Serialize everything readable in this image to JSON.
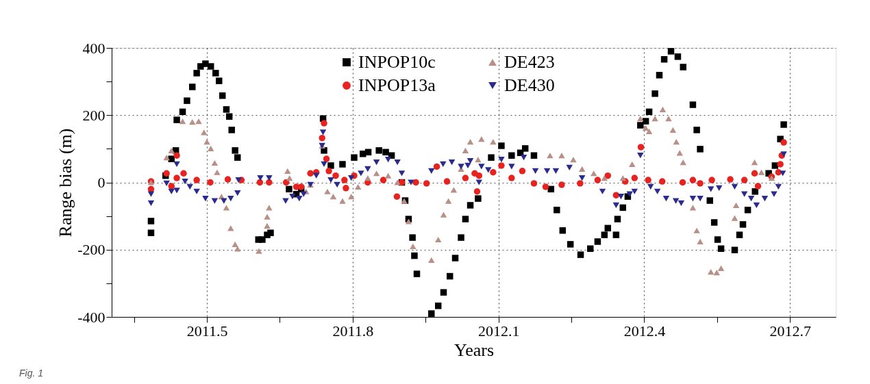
{
  "chart_data": {
    "type": "scatter",
    "xlabel": "Years",
    "ylabel": "Range bias (m)",
    "xlim": [
      2011.304,
      2012.794
    ],
    "ylim": [
      -400,
      400
    ],
    "xticks": [
      {
        "value": 2011.35,
        "label": null
      },
      2011.5,
      {
        "value": 2011.65,
        "label": null
      },
      2011.8,
      {
        "value": 2011.95,
        "label": null
      },
      2012.1,
      {
        "value": 2012.25,
        "label": null
      },
      2012.4,
      {
        "value": 2012.55,
        "label": null
      },
      2012.7
    ],
    "yticks": [
      -400,
      {
        "value": -300,
        "label": null
      },
      -200,
      {
        "value": -100,
        "label": null
      },
      0,
      {
        "value": 100,
        "label": null
      },
      200,
      {
        "value": 300,
        "label": null
      },
      400
    ],
    "grid": true,
    "legend": "top",
    "annotations": [
      "Fig. 1"
    ],
    "series": [
      {
        "name": "INPOP10c",
        "color": "#000000",
        "marker": "square",
        "x": [
          2011.385,
          2011.385,
          2011.415,
          2011.427,
          2011.436,
          2011.438,
          2011.45,
          2011.459,
          2011.47,
          2011.479,
          2011.487,
          2011.497,
          2011.508,
          2011.518,
          2011.525,
          2011.532,
          2011.54,
          2011.546,
          2011.551,
          2011.558,
          2011.563,
          2011.606,
          2011.614,
          2011.624,
          2011.631,
          2011.669,
          2011.684,
          2011.694,
          2011.739,
          2011.741,
          2011.755,
          2011.779,
          2011.803,
          2011.821,
          2011.832,
          2011.854,
          2011.868,
          2011.88,
          2011.901,
          2011.908,
          2011.915,
          2011.923,
          2011.927,
          2011.932,
          2011.962,
          2011.976,
          2011.987,
          2012.0,
          2012.011,
          2012.023,
          2012.032,
          2012.042,
          2012.058,
          2012.085,
          2012.106,
          2012.127,
          2012.145,
          2012.155,
          2012.173,
          2012.208,
          2012.22,
          2012.232,
          2012.248,
          2012.269,
          2012.289,
          2012.304,
          2012.318,
          2012.325,
          2012.342,
          2012.345,
          2012.356,
          2012.366,
          2012.392,
          2012.403,
          2012.41,
          2012.422,
          2012.431,
          2012.441,
          2012.455,
          2012.469,
          2012.48,
          2012.5,
          2012.508,
          2012.515,
          2012.535,
          2012.544,
          2012.551,
          2012.558,
          2012.586,
          2012.596,
          2012.603,
          2012.613,
          2012.628,
          2012.656,
          2012.669,
          2012.68,
          2012.687
        ],
        "values": [
          -150,
          -115,
          20,
          70,
          95,
          186,
          210,
          243,
          284,
          325,
          345,
          353,
          345,
          325,
          302,
          258,
          217,
          196,
          156,
          95,
          74,
          -170,
          -170,
          -156,
          -150,
          -20,
          -35,
          -20,
          190,
          95,
          50,
          54,
          74,
          85,
          90,
          95,
          90,
          80,
          0,
          -54,
          -109,
          -164,
          -218,
          -272,
          -390,
          -367,
          -327,
          -279,
          -225,
          -164,
          -109,
          -68,
          -48,
          74,
          109,
          80,
          88,
          101,
          80,
          -20,
          -82,
          -143,
          -184,
          -215,
          -197,
          -176,
          -156,
          -136,
          -156,
          -109,
          -75,
          -42,
          170,
          182,
          210,
          264,
          319,
          366,
          390,
          374,
          343,
          231,
          156,
          99,
          -54,
          -119,
          -170,
          -197,
          -201,
          -156,
          -125,
          -82,
          -27,
          27,
          50,
          129,
          172
        ]
      },
      {
        "name": "INPOP13a",
        "color": "#e8231f",
        "marker": "circle",
        "x": [
          2011.385,
          2011.385,
          2011.417,
          2011.427,
          2011.438,
          2011.438,
          2011.452,
          2011.479,
          2011.507,
          2011.543,
          2011.571,
          2011.609,
          2011.628,
          2011.663,
          2011.684,
          2011.694,
          2011.713,
          2011.725,
          2011.737,
          2011.741,
          2011.746,
          2011.751,
          2011.765,
          2011.783,
          2011.786,
          2011.803,
          2011.831,
          2011.863,
          2011.891,
          2011.901,
          2011.93,
          2011.952,
          2011.973,
          2011.994,
          2012.032,
          2012.051,
          2012.056,
          2012.06,
          2012.089,
          2012.106,
          2012.127,
          2012.149,
          2012.173,
          2012.197,
          2012.23,
          2012.268,
          2012.304,
          2012.325,
          2012.342,
          2012.361,
          2012.38,
          2012.393,
          2012.408,
          2012.437,
          2012.479,
          2012.5,
          2012.515,
          2012.539,
          2012.577,
          2012.606,
          2012.627,
          2012.634,
          2012.662,
          2012.676,
          2012.68,
          2012.683,
          2012.687
        ],
        "values": [
          3,
          -20,
          27,
          -11,
          80,
          13,
          27,
          7,
          0,
          9,
          7,
          0,
          0,
          0,
          -13,
          -13,
          27,
          30,
          132,
          176,
          70,
          34,
          20,
          7,
          -17,
          20,
          0,
          7,
          -42,
          0,
          0,
          -3,
          47,
          3,
          13,
          27,
          -27,
          20,
          30,
          50,
          13,
          34,
          -3,
          -13,
          -7,
          -3,
          7,
          20,
          -38,
          3,
          13,
          105,
          7,
          3,
          0,
          7,
          -3,
          7,
          9,
          7,
          27,
          -11,
          17,
          30,
          54,
          80,
          119
        ]
      },
      {
        "name": "DE423",
        "color": "#b99088",
        "marker": "triangle",
        "x": [
          2011.385,
          2011.417,
          2011.427,
          2011.45,
          2011.47,
          2011.483,
          2011.494,
          2011.5,
          2011.508,
          2011.516,
          2011.521,
          2011.53,
          2011.54,
          2011.549,
          2011.558,
          2011.563,
          2011.607,
          2011.624,
          2011.624,
          2011.628,
          2011.666,
          2011.67,
          2011.704,
          2011.713,
          2011.737,
          2011.748,
          2011.76,
          2011.779,
          2011.797,
          2011.811,
          2011.831,
          2011.849,
          2011.873,
          2011.892,
          2011.906,
          2011.915,
          2011.924,
          2011.962,
          2011.976,
          2011.987,
          2011.997,
          2012.008,
          2012.023,
          2012.032,
          2012.042,
          2012.058,
          2012.065,
          2012.089,
          2012.206,
          2012.23,
          2012.254,
          2012.272,
          2012.296,
          2012.318,
          2012.356,
          2012.375,
          2012.392,
          2012.403,
          2012.41,
          2012.422,
          2012.438,
          2012.45,
          2012.459,
          2012.466,
          2012.473,
          2012.48,
          2012.5,
          2012.508,
          2012.515,
          2012.537,
          2012.549,
          2012.558,
          2012.586,
          2012.589,
          2012.627,
          2012.641,
          2012.662
        ],
        "values": [
          0,
          74,
          95,
          182,
          180,
          182,
          149,
          121,
          101,
          58,
          30,
          -42,
          -75,
          -136,
          -184,
          -197,
          -204,
          -129,
          -102,
          -75,
          34,
          13,
          -27,
          -7,
          109,
          -27,
          -42,
          -55,
          -42,
          -13,
          13,
          27,
          20,
          0,
          -55,
          -116,
          -190,
          -231,
          -170,
          -96,
          -55,
          -22,
          40,
          95,
          121,
          68,
          129,
          121,
          80,
          80,
          68,
          40,
          27,
          13,
          13,
          54,
          190,
          162,
          152,
          190,
          217,
          190,
          156,
          121,
          88,
          60,
          -75,
          -143,
          -176,
          -266,
          -268,
          -255,
          -106,
          -68,
          60,
          30,
          13
        ]
      },
      {
        "name": "DE430",
        "color": "#2b2b8f",
        "marker": "triangle-down",
        "x": [
          2011.385,
          2011.385,
          2011.417,
          2011.427,
          2011.438,
          2011.438,
          2011.455,
          2011.465,
          2011.479,
          2011.497,
          2011.516,
          2011.535,
          2011.549,
          2011.563,
          2011.565,
          2011.61,
          2011.628,
          2011.662,
          2011.676,
          2011.69,
          2011.699,
          2011.713,
          2011.725,
          2011.737,
          2011.739,
          2011.741,
          2011.755,
          2011.768,
          2011.797,
          2011.817,
          2011.831,
          2011.849,
          2011.873,
          2011.892,
          2011.901,
          2011.92,
          2011.962,
          2011.986,
          2012.004,
          2012.023,
          2012.037,
          2012.042,
          2012.06,
          2012.065,
          2012.079,
          2012.106,
          2012.127,
          2012.152,
          2012.176,
          2012.2,
          2012.218,
          2012.246,
          2012.272,
          2012.314,
          2012.342,
          2012.352,
          2012.37,
          2012.38,
          2012.392,
          2012.413,
          2012.427,
          2012.445,
          2012.465,
          2012.476,
          2012.5,
          2012.515,
          2012.537,
          2012.554,
          2012.586,
          2012.606,
          2012.62,
          2012.631,
          2012.648,
          2012.667,
          2012.676,
          2012.685,
          2012.687
        ],
        "values": [
          -62,
          -35,
          -3,
          -27,
          54,
          -24,
          3,
          -13,
          -27,
          -48,
          -55,
          -55,
          -48,
          -32,
          7,
          13,
          13,
          -55,
          -42,
          -48,
          -35,
          -7,
          20,
          109,
          149,
          54,
          7,
          -7,
          13,
          27,
          40,
          60,
          68,
          60,
          27,
          0,
          34,
          54,
          60,
          47,
          50,
          64,
          0,
          47,
          37,
          68,
          47,
          74,
          34,
          34,
          34,
          44,
          13,
          -27,
          -68,
          -42,
          -35,
          -27,
          80,
          -13,
          -27,
          -48,
          -55,
          -62,
          -48,
          -48,
          -20,
          -17,
          -13,
          -35,
          -48,
          -68,
          -48,
          -35,
          -13,
          27,
          84
        ]
      }
    ]
  }
}
